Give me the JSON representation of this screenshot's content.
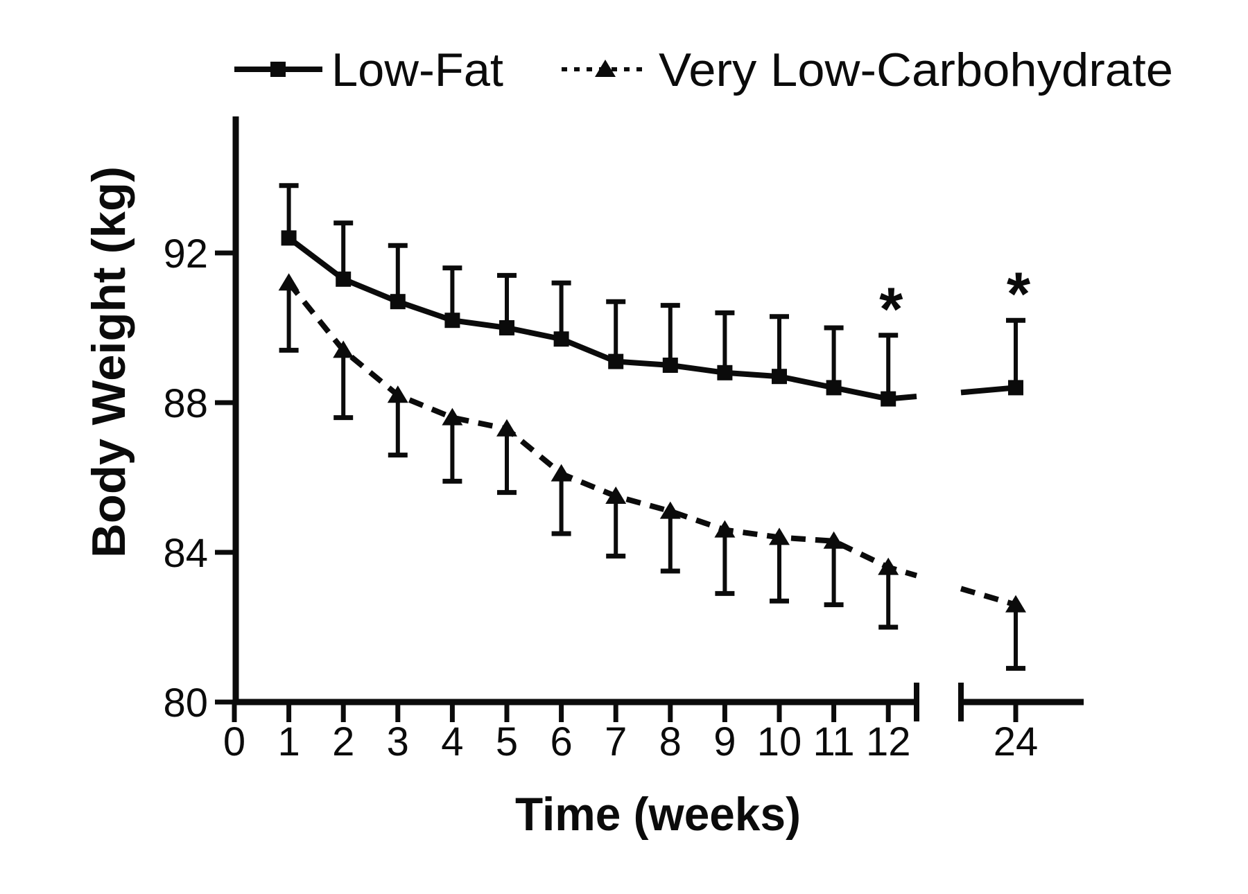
{
  "figure": {
    "background_color": "#ffffff",
    "ink_color": "#0b0b0b"
  },
  "chart_data": {
    "type": "line",
    "title": "",
    "xlabel": "Time (weeks)",
    "ylabel": "Body Weight (kg)",
    "grid": false,
    "legend_position": "top",
    "ylim": [
      80,
      93.6
    ],
    "y_ticks": [
      80,
      84,
      88,
      92
    ],
    "x_tick_labels": [
      "0",
      "1",
      "2",
      "3",
      "4",
      "5",
      "6",
      "7",
      "8",
      "9",
      "10",
      "11",
      "12",
      "24"
    ],
    "x_axis_break": {
      "between": [
        "12",
        "24"
      ]
    },
    "series": [
      {
        "name": "Low-Fat",
        "marker": "square",
        "line_style": "solid",
        "error_bar_direction": "up",
        "weeks": [
          1,
          2,
          3,
          4,
          5,
          6,
          7,
          8,
          9,
          10,
          11,
          12,
          24
        ],
        "values": [
          92.4,
          91.3,
          90.7,
          90.2,
          90.0,
          89.7,
          89.1,
          89.0,
          88.8,
          88.7,
          88.4,
          88.1,
          88.4
        ],
        "errors": [
          1.4,
          1.5,
          1.5,
          1.4,
          1.4,
          1.5,
          1.6,
          1.6,
          1.6,
          1.6,
          1.6,
          1.7,
          1.8
        ]
      },
      {
        "name": "Very Low-Carbohydrate",
        "marker": "triangle",
        "line_style": "dashed",
        "error_bar_direction": "down",
        "weeks": [
          1,
          2,
          3,
          4,
          5,
          6,
          7,
          8,
          9,
          10,
          11,
          12,
          24
        ],
        "values": [
          91.2,
          89.4,
          88.2,
          87.6,
          87.3,
          86.1,
          85.5,
          85.1,
          84.6,
          84.4,
          84.3,
          83.6,
          82.6
        ],
        "errors": [
          1.8,
          1.8,
          1.6,
          1.7,
          1.7,
          1.6,
          1.6,
          1.6,
          1.7,
          1.7,
          1.7,
          1.6,
          1.7
        ]
      }
    ],
    "annotations": [
      {
        "symbol": "*",
        "series": "Low-Fat",
        "week": 12
      },
      {
        "symbol": "*",
        "series": "Low-Fat",
        "week": 24
      }
    ]
  }
}
